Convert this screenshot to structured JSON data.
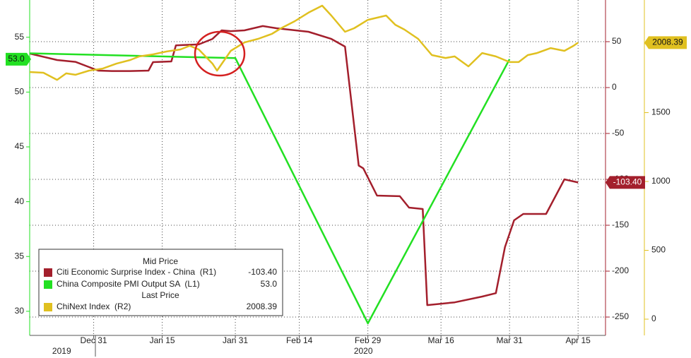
{
  "chart_data": {
    "type": "line",
    "xlim": [
      "2019-12-17",
      "2020-04-21"
    ],
    "xticks": [
      {
        "value": "2019-12-31",
        "label": "Dec 31"
      },
      {
        "value": "2020-01-15",
        "label": "Jan 15"
      },
      {
        "value": "2020-01-31",
        "label": "Jan 31"
      },
      {
        "value": "2020-02-14",
        "label": "Feb 14"
      },
      {
        "value": "2020-02-29",
        "label": "Feb 29"
      },
      {
        "value": "2020-03-16",
        "label": "Mar 16"
      },
      {
        "value": "2020-03-31",
        "label": "Mar 31"
      },
      {
        "value": "2020-04-15",
        "label": "Apr 15"
      }
    ],
    "xticks_years": [
      {
        "value": "2019-12-24",
        "label": "2019"
      },
      {
        "value": "2020-02-28",
        "label": "2020"
      }
    ],
    "ylim": [
      27.8,
      58.4
    ],
    "yticks": [
      30,
      35,
      40,
      45,
      50,
      55
    ],
    "y2lim": [
      -270,
      95.4
    ],
    "y2ticks": [
      50,
      0,
      -50,
      -100,
      -150,
      -200,
      -250
    ],
    "y3lim": [
      -118,
      2318
    ],
    "y3ticks": [
      0,
      500,
      1000,
      1500,
      2000
    ],
    "grid": true,
    "legend_position": "lower-left",
    "legend_headers": [
      "Mid Price",
      "Last Price"
    ],
    "series": [
      {
        "name": "Citi Economic Surprise Index - China  (R1)",
        "color": "#a31f2c",
        "axis": "y2",
        "last_value_label": "-103.40",
        "x": [
          "2019-12-17",
          "2019-12-23",
          "2019-12-27",
          "2019-12-30",
          "2020-01-01",
          "2020-01-04",
          "2020-01-08",
          "2020-01-12",
          "2020-01-13",
          "2020-01-17",
          "2020-01-18",
          "2020-01-23",
          "2020-01-26",
          "2020-01-28",
          "2020-01-30",
          "2020-02-02",
          "2020-02-06",
          "2020-02-09",
          "2020-02-16",
          "2020-02-21",
          "2020-02-24",
          "2020-02-27",
          "2020-02-28",
          "2020-03-02",
          "2020-03-07",
          "2020-03-09",
          "2020-03-12",
          "2020-03-13",
          "2020-03-19",
          "2020-03-25",
          "2020-03-28",
          "2020-03-30",
          "2020-04-01",
          "2020-04-03",
          "2020-04-08",
          "2020-04-12",
          "2020-04-15"
        ],
        "values": [
          37,
          30,
          28,
          22.3,
          18.5,
          18,
          18,
          18.5,
          27.7,
          28.5,
          46,
          47,
          53,
          62.3,
          61.5,
          62.3,
          67,
          64.6,
          60.8,
          53,
          44.6,
          -85,
          -88,
          -117.7,
          -118.4,
          -130.8,
          -132.3,
          -237,
          -234,
          -227.7,
          -224,
          -173.8,
          -144.6,
          -137.7,
          -137.7,
          -100,
          -103.4
        ]
      },
      {
        "name": "China Composite PMI Output SA  (L1)",
        "color": "#22e022",
        "axis": "y",
        "last_value_label": "53.0",
        "x": [
          "2019-11-30",
          "2019-12-31",
          "2020-01-31",
          "2020-02-29",
          "2020-03-31"
        ],
        "values": [
          53.7,
          53.4,
          53.1,
          28.9,
          53.0
        ]
      },
      {
        "name": "ChiNext Index  (R2)",
        "color": "#e0c020",
        "axis": "y3",
        "last_value_label": "2008.39",
        "x": [
          "2019-12-17",
          "2019-12-20",
          "2019-12-23",
          "2019-12-25",
          "2019-12-27",
          "2019-12-30",
          "2020-01-02",
          "2020-01-05",
          "2020-01-08",
          "2020-01-10",
          "2020-01-13",
          "2020-01-16",
          "2020-01-19",
          "2020-01-21",
          "2020-01-23",
          "2020-01-26",
          "2020-01-27",
          "2020-01-30",
          "2020-02-02",
          "2020-02-05",
          "2020-02-08",
          "2020-02-10",
          "2020-02-13",
          "2020-02-16",
          "2020-02-19",
          "2020-02-21",
          "2020-02-24",
          "2020-02-26",
          "2020-02-29",
          "2020-03-04",
          "2020-03-06",
          "2020-03-08",
          "2020-03-11",
          "2020-03-14",
          "2020-03-17",
          "2020-03-19",
          "2020-03-22",
          "2020-03-25",
          "2020-03-28",
          "2020-03-31",
          "2020-04-02",
          "2020-04-04",
          "2020-04-06",
          "2020-04-09",
          "2020-04-12",
          "2020-04-14",
          "2020-04-15"
        ],
        "values": [
          1795,
          1790,
          1738,
          1785,
          1775,
          1805,
          1820,
          1856,
          1882,
          1908,
          1923,
          1944,
          1959,
          1985,
          1959,
          1856,
          1805,
          1949,
          2010,
          2036,
          2072,
          2113,
          2164,
          2226,
          2277,
          2205,
          2087,
          2113,
          2174,
          2205,
          2138,
          2103,
          2036,
          1918,
          1897,
          1908,
          1836,
          1933,
          1908,
          1867,
          1867,
          1918,
          1933,
          1969,
          1949,
          1985,
          2008.39
        ]
      }
    ]
  }
}
